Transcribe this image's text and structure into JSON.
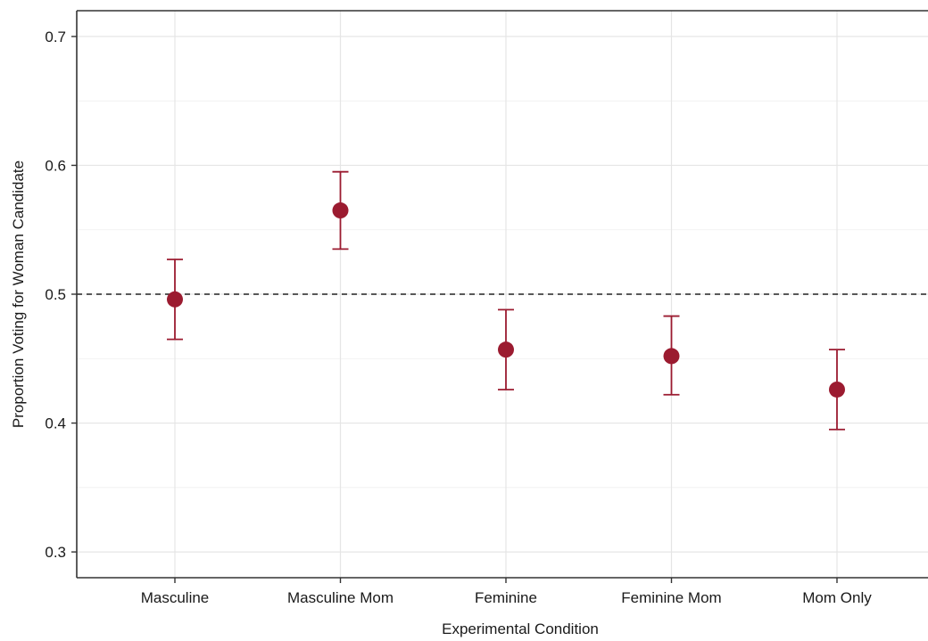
{
  "chart_data": {
    "type": "scatter",
    "title": "",
    "xlabel": "Experimental Condition",
    "ylabel": "Proportion Voting for Woman Candidate",
    "categories": [
      "Masculine",
      "Masculine Mom",
      "Feminine",
      "Feminine Mom",
      "Mom Only"
    ],
    "values": [
      0.496,
      0.565,
      0.457,
      0.452,
      0.426
    ],
    "error_low": [
      0.465,
      0.535,
      0.426,
      0.422,
      0.395
    ],
    "error_high": [
      0.527,
      0.595,
      0.488,
      0.483,
      0.457
    ],
    "ylim": [
      0.28,
      0.72
    ],
    "yticks": [
      0.3,
      0.4,
      0.5,
      0.6,
      0.7
    ],
    "ytick_labels": [
      "0.3",
      "0.4",
      "0.5",
      "0.6",
      "0.7"
    ],
    "reference_line": 0.5,
    "grid": true,
    "legend": "none",
    "colors": {
      "point": "#9b1b30",
      "errorbar": "#9b1b30",
      "grid": "#e5e5e5",
      "axis": "#333333",
      "reference_line": "#222222"
    }
  }
}
